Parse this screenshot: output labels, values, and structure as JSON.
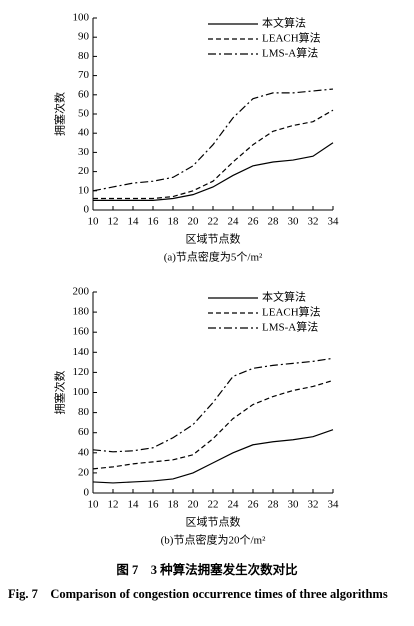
{
  "chart_data": [
    {
      "type": "line",
      "subtitle": "(a)节点密度为5个/m²",
      "x_label": "区域节点数",
      "y_label": "拥塞次数",
      "x": [
        10,
        12,
        14,
        16,
        18,
        20,
        22,
        24,
        26,
        28,
        30,
        32,
        34
      ],
      "series": [
        {
          "name": "本文算法",
          "color": "#000000",
          "linestyle": "solid",
          "values": [
            5,
            5,
            5,
            5,
            6,
            8,
            12,
            18,
            23,
            25,
            26,
            28,
            35
          ]
        },
        {
          "name": "LEACH算法",
          "color": "#000000",
          "linestyle": "dashed",
          "values": [
            6,
            6,
            6,
            6,
            7,
            10,
            15,
            25,
            34,
            41,
            44,
            46,
            52
          ]
        },
        {
          "name": "LMS-A算法",
          "color": "#000000",
          "linestyle": "dashdot",
          "values": [
            10,
            12,
            14,
            15,
            17,
            23,
            34,
            48,
            58,
            61,
            61,
            62,
            63
          ]
        }
      ],
      "xlim": [
        10,
        34
      ],
      "xticks": [
        10,
        12,
        14,
        16,
        18,
        20,
        22,
        24,
        26,
        28,
        30,
        32,
        34
      ],
      "ylim": [
        0,
        100
      ],
      "yticks": [
        0,
        10,
        20,
        30,
        40,
        50,
        60,
        70,
        80,
        90,
        100
      ],
      "grid": false,
      "legend": "top-left"
    },
    {
      "type": "line",
      "subtitle": "(b)节点密度为20个/m²",
      "x_label": "区域节点数",
      "y_label": "拥塞次数",
      "x": [
        10,
        12,
        14,
        16,
        18,
        20,
        22,
        24,
        26,
        28,
        30,
        32,
        34
      ],
      "series": [
        {
          "name": "本文算法",
          "color": "#000000",
          "linestyle": "solid",
          "values": [
            11,
            10,
            11,
            12,
            14,
            20,
            30,
            40,
            48,
            51,
            53,
            56,
            63
          ]
        },
        {
          "name": "LEACH算法",
          "color": "#000000",
          "linestyle": "dashed",
          "values": [
            24,
            26,
            29,
            31,
            33,
            38,
            54,
            74,
            88,
            96,
            102,
            106,
            112
          ]
        },
        {
          "name": "LMS-A算法",
          "color": "#000000",
          "linestyle": "dashdot",
          "values": [
            43,
            41,
            42,
            45,
            55,
            68,
            90,
            116,
            124,
            127,
            129,
            131,
            134
          ]
        }
      ],
      "xlim": [
        10,
        34
      ],
      "xticks": [
        10,
        12,
        14,
        16,
        18,
        20,
        22,
        24,
        26,
        28,
        30,
        32,
        34
      ],
      "ylim": [
        0,
        200
      ],
      "yticks": [
        0,
        20,
        40,
        60,
        80,
        100,
        120,
        140,
        160,
        180,
        200
      ],
      "grid": false,
      "legend": "top-left"
    }
  ],
  "caption": {
    "cn": "图 7　3 种算法拥塞发生次数对比",
    "en": "Fig. 7　Comparison of congestion occurrence times of three algorithms"
  }
}
